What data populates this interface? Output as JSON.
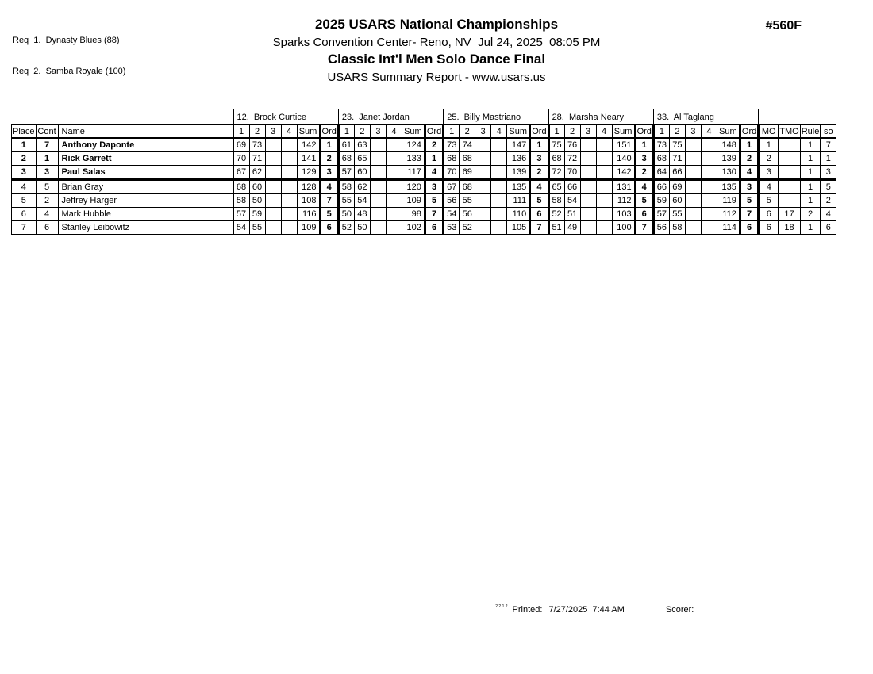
{
  "page": {
    "req_lines": [
      "Req  1.  Dynasty Blues (88)",
      "Req  2.  Samba Royale (100)"
    ],
    "header": {
      "title": "2025 USARS National Championships",
      "venue_line": "Sparks Convention Center- Reno, NV  Jul 24, 2025  08:05 PM",
      "event_title": "Classic Int'l Men Solo Dance Final",
      "report_line": "USARS Summary Report - www.usars.us",
      "event_number": "#560F"
    },
    "footer": {
      "version": "2.2.1.2",
      "printed_label": "Printed:",
      "printed_value": "7/27/2025  7:44 AM",
      "scorer_label": "Scorer:"
    }
  },
  "table": {
    "left_headers": [
      "Place",
      "Cont",
      "Name"
    ],
    "judges": [
      {
        "name": "12.  Brock Curtice"
      },
      {
        "name": "23.  Janet Jordan"
      },
      {
        "name": "25.  Billy Mastriano"
      },
      {
        "name": "28.  Marsha Neary"
      },
      {
        "name": "33.  Al Taglang"
      }
    ],
    "score_headers": [
      "1",
      "2",
      "3",
      "4",
      "Sum",
      "Ord"
    ],
    "right_headers": [
      "MO",
      "TMO",
      "Rule",
      "so"
    ],
    "rows": [
      {
        "place": "1",
        "cont": "7",
        "name": "Anthony Daponte",
        "bold": true,
        "judges": [
          [
            "69",
            "73",
            "",
            "",
            "142",
            "1"
          ],
          [
            "61",
            "63",
            "",
            "",
            "124",
            "2"
          ],
          [
            "73",
            "74",
            "",
            "",
            "147",
            "1"
          ],
          [
            "75",
            "76",
            "",
            "",
            "151",
            "1"
          ],
          [
            "73",
            "75",
            "",
            "",
            "148",
            "1"
          ]
        ],
        "mo": "1",
        "tmo": "",
        "rule": "1",
        "so": "7"
      },
      {
        "place": "2",
        "cont": "1",
        "name": "Rick Garrett",
        "bold": true,
        "judges": [
          [
            "70",
            "71",
            "",
            "",
            "141",
            "2"
          ],
          [
            "68",
            "65",
            "",
            "",
            "133",
            "1"
          ],
          [
            "68",
            "68",
            "",
            "",
            "136",
            "3"
          ],
          [
            "68",
            "72",
            "",
            "",
            "140",
            "3"
          ],
          [
            "68",
            "71",
            "",
            "",
            "139",
            "2"
          ]
        ],
        "mo": "2",
        "tmo": "",
        "rule": "1",
        "so": "1"
      },
      {
        "place": "3",
        "cont": "3",
        "name": "Paul Salas",
        "bold": true,
        "judges": [
          [
            "67",
            "62",
            "",
            "",
            "129",
            "3"
          ],
          [
            "57",
            "60",
            "",
            "",
            "117",
            "4"
          ],
          [
            "70",
            "69",
            "",
            "",
            "139",
            "2"
          ],
          [
            "72",
            "70",
            "",
            "",
            "142",
            "2"
          ],
          [
            "64",
            "66",
            "",
            "",
            "130",
            "4"
          ]
        ],
        "mo": "3",
        "tmo": "",
        "rule": "1",
        "so": "3"
      },
      {
        "place": "4",
        "cont": "5",
        "name": "Brian Gray",
        "bold": false,
        "judges": [
          [
            "68",
            "60",
            "",
            "",
            "128",
            "4"
          ],
          [
            "58",
            "62",
            "",
            "",
            "120",
            "3"
          ],
          [
            "67",
            "68",
            "",
            "",
            "135",
            "4"
          ],
          [
            "65",
            "66",
            "",
            "",
            "131",
            "4"
          ],
          [
            "66",
            "69",
            "",
            "",
            "135",
            "3"
          ]
        ],
        "mo": "4",
        "tmo": "",
        "rule": "1",
        "so": "5"
      },
      {
        "place": "5",
        "cont": "2",
        "name": "Jeffrey Harger",
        "bold": false,
        "judges": [
          [
            "58",
            "50",
            "",
            "",
            "108",
            "7"
          ],
          [
            "55",
            "54",
            "",
            "",
            "109",
            "5"
          ],
          [
            "56",
            "55",
            "",
            "",
            "111",
            "5"
          ],
          [
            "58",
            "54",
            "",
            "",
            "112",
            "5"
          ],
          [
            "59",
            "60",
            "",
            "",
            "119",
            "5"
          ]
        ],
        "mo": "5",
        "tmo": "",
        "rule": "1",
        "so": "2"
      },
      {
        "place": "6",
        "cont": "4",
        "name": "Mark Hubble",
        "bold": false,
        "judges": [
          [
            "57",
            "59",
            "",
            "",
            "116",
            "5"
          ],
          [
            "50",
            "48",
            "",
            "",
            "98",
            "7"
          ],
          [
            "54",
            "56",
            "",
            "",
            "110",
            "6"
          ],
          [
            "52",
            "51",
            "",
            "",
            "103",
            "6"
          ],
          [
            "57",
            "55",
            "",
            "",
            "112",
            "7"
          ]
        ],
        "mo": "6",
        "tmo": "17",
        "rule": "2",
        "so": "4"
      },
      {
        "place": "7",
        "cont": "6",
        "name": "Stanley Leibowitz",
        "bold": false,
        "judges": [
          [
            "54",
            "55",
            "",
            "",
            "109",
            "6"
          ],
          [
            "52",
            "50",
            "",
            "",
            "102",
            "6"
          ],
          [
            "53",
            "52",
            "",
            "",
            "105",
            "7"
          ],
          [
            "51",
            "49",
            "",
            "",
            "100",
            "7"
          ],
          [
            "56",
            "58",
            "",
            "",
            "114",
            "6"
          ]
        ],
        "mo": "6",
        "tmo": "18",
        "rule": "1",
        "so": "6"
      }
    ]
  }
}
